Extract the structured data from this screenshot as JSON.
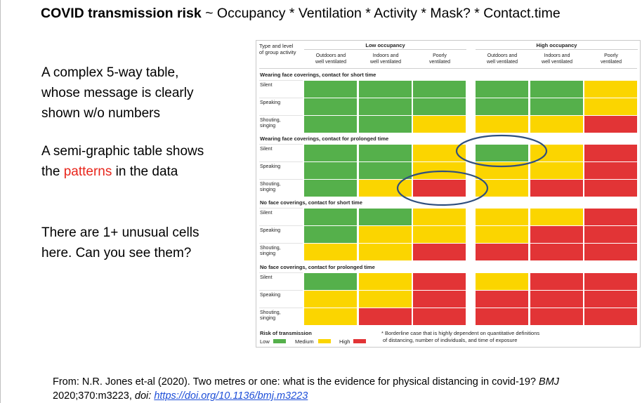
{
  "title": {
    "bold": "COVID transmission risk",
    "rest": " ~ Occupancy * Ventilation * Activity * Mask? * Contact.time"
  },
  "bullets": {
    "b1_line1": "A complex 5-way table,",
    "b1_line2": "whose message is clearly",
    "b1_line3": "shown w/o numbers",
    "b2_line1": "A semi-graphic table shows",
    "b2_line2_pre": "the ",
    "b2_line2_red": "patterns",
    "b2_line2_post": " in the data",
    "b3_line1": "There are 1+ unusual cells",
    "b3_line2": "here.  Can you see them?"
  },
  "table": {
    "corner_label_1": "Type and level",
    "corner_label_2": "of group activity",
    "occupancy": [
      "Low occupancy",
      "High occupancy"
    ],
    "columns": [
      [
        "Outdoors and",
        "well ventilated"
      ],
      [
        "Indoors and",
        "well ventilated"
      ],
      [
        "Poorly",
        "ventilated"
      ],
      [
        "Outdoors and",
        "well ventilated"
      ],
      [
        "Indoors and",
        "well ventilated"
      ],
      [
        "Poorly",
        "ventilated"
      ]
    ],
    "groups": [
      {
        "title": "Wearing face coverings, contact for short time",
        "rows": [
          {
            "label": [
              "Silent"
            ],
            "cells": [
              "g",
              "g",
              "g",
              "g",
              "g",
              "y"
            ]
          },
          {
            "label": [
              "Speaking"
            ],
            "cells": [
              "g",
              "g",
              "g",
              "g",
              "g",
              "y"
            ]
          },
          {
            "label": [
              "Shouting,",
              "singing"
            ],
            "cells": [
              "g",
              "g",
              "y",
              "y",
              "y",
              "r"
            ]
          }
        ]
      },
      {
        "title": "Wearing face coverings, contact for prolonged time",
        "rows": [
          {
            "label": [
              "Silent"
            ],
            "cells": [
              "g",
              "g",
              "y",
              "g",
              "y",
              "r"
            ]
          },
          {
            "label": [
              "Speaking"
            ],
            "cells": [
              "g",
              "g",
              "y",
              "y",
              "y",
              "r"
            ]
          },
          {
            "label": [
              "Shouting,",
              "singing"
            ],
            "cells": [
              "g",
              "y",
              "r",
              "y",
              "r",
              "r"
            ]
          }
        ]
      },
      {
        "title": "No face coverings, contact for short time",
        "rows": [
          {
            "label": [
              "Silent"
            ],
            "cells": [
              "g",
              "g",
              "y",
              "y",
              "y",
              "r"
            ]
          },
          {
            "label": [
              "Speaking"
            ],
            "cells": [
              "g",
              "y",
              "y",
              "y",
              "r",
              "r"
            ]
          },
          {
            "label": [
              "Shouting,",
              "singing"
            ],
            "cells": [
              "y",
              "y",
              "r",
              "r",
              "r",
              "r"
            ]
          }
        ]
      },
      {
        "title": "No face coverings, contact for prolonged time",
        "rows": [
          {
            "label": [
              "Silent"
            ],
            "cells": [
              "g",
              "y",
              "r",
              "y",
              "r",
              "r"
            ]
          },
          {
            "label": [
              "Speaking"
            ],
            "cells": [
              "y",
              "y",
              "r",
              "r",
              "r",
              "r"
            ]
          },
          {
            "label": [
              "Shouting,",
              "singing"
            ],
            "cells": [
              "y",
              "r",
              "r",
              "r",
              "r",
              "r"
            ]
          }
        ]
      }
    ],
    "colors": {
      "g": "#55b04b",
      "y": "#fbd500",
      "r": "#e23436"
    },
    "legend": {
      "title": "Risk of transmission",
      "low": "Low",
      "medium": "Medium",
      "high": "High",
      "note_line1": "* Borderline case that is highly dependent on quantitative definitions",
      "note_line2": "of distancing, number of individuals, and time of exposure"
    }
  },
  "footer": {
    "line1_pre": "From:  N.R. Jones et-al (2020). Two metres or one: what is the evidence for physical distancing in covid-19? ",
    "line1_journal": "BMJ",
    "line2_pre": "2020;370:m3223, ",
    "doi_label": "doi",
    "doi_sep": ": ",
    "doi_url": "https://doi.org/10.1136/bmj.m3223"
  }
}
